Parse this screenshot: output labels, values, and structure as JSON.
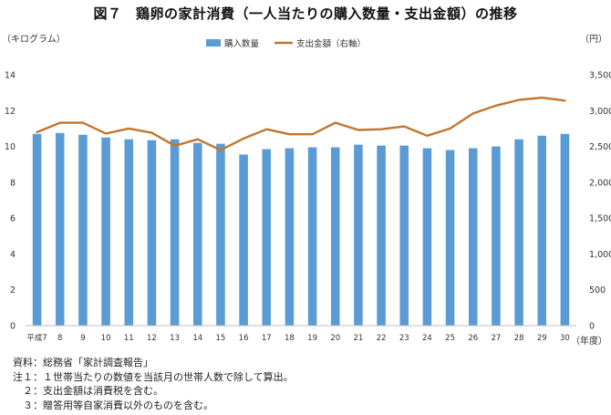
{
  "title": "図７　鶏卵の家計消費（一人当たりの購入数量・支出金額）の推移",
  "chart_data": {
    "type": "bar",
    "y_left_label": "（キログラム）",
    "y_right_label": "（円）",
    "x_unit_label": "（年度）",
    "ylim_left": [
      0,
      14
    ],
    "ylim_right": [
      0,
      3500
    ],
    "yticks_left": [
      "0",
      "2",
      "4",
      "6",
      "8",
      "10",
      "12",
      "14"
    ],
    "yticks_right": [
      "0",
      "500",
      "1,000",
      "1,500",
      "2,000",
      "2,500",
      "3,000",
      "3,500"
    ],
    "grid": false,
    "legend_position": "top-center",
    "categories": [
      "平成7",
      "8",
      "9",
      "10",
      "11",
      "12",
      "13",
      "14",
      "15",
      "16",
      "17",
      "18",
      "19",
      "20",
      "21",
      "22",
      "23",
      "24",
      "25",
      "26",
      "27",
      "28",
      "29",
      "30"
    ],
    "series": [
      {
        "name": "購入数量",
        "type": "bar",
        "axis": "left",
        "color": "#5b9bd5",
        "values": [
          10.7,
          10.75,
          10.65,
          10.5,
          10.4,
          10.35,
          10.4,
          10.2,
          10.15,
          9.55,
          9.85,
          9.9,
          9.95,
          9.95,
          10.1,
          10.05,
          10.05,
          9.9,
          9.8,
          9.9,
          10.0,
          10.4,
          10.6,
          10.7
        ]
      },
      {
        "name": "支出金額（右軸）",
        "type": "line",
        "axis": "right",
        "color": "#c0772e",
        "values": [
          2700,
          2830,
          2830,
          2680,
          2750,
          2690,
          2510,
          2600,
          2450,
          2610,
          2740,
          2670,
          2670,
          2830,
          2730,
          2740,
          2780,
          2650,
          2750,
          2960,
          3070,
          3150,
          3180,
          3140
        ]
      }
    ]
  },
  "notes": [
    "資料：総務省「家計調査報告」",
    "注１：１世帯当たりの数値を当該月の世帯人数で除して算出。",
    "　２：支出金額は消費税を含む。",
    "　３：贈答用等自家消費以外のものを含む。"
  ]
}
